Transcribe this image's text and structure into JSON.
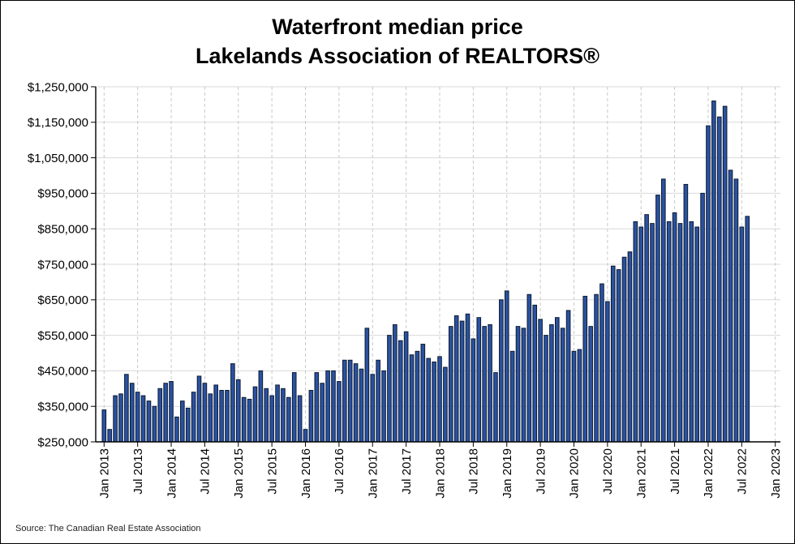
{
  "page": {
    "title_line1": "Waterfront median price",
    "title_line2": "Lakelands Association of REALTORS®",
    "source": "Source: The Canadian Real Estate Association"
  },
  "chart_data": {
    "type": "bar",
    "title": "Waterfront median price — Lakelands Association of REALTORS®",
    "xlabel": "",
    "ylabel": "",
    "legend": "none",
    "grid": {
      "horizontal": "solid",
      "vertical": "dashed"
    },
    "y_axis": {
      "min": 250000,
      "max": 1250000,
      "step": 100000,
      "format": "$#,##0"
    },
    "x_tick_labels": [
      "Jan 2013",
      "Jul 2013",
      "Jan 2014",
      "Jul 2014",
      "Jan 2015",
      "Jul 2015",
      "Jan 2016",
      "Jul 2016",
      "Jan 2017",
      "Jul 2017",
      "Jan 2018",
      "Jul 2018",
      "Jan 2019",
      "Jul 2019",
      "Jan 2020",
      "Jul 2020",
      "Jan 2021",
      "Jul 2021",
      "Jan 2022",
      "Jul 2022",
      "Jan 2023"
    ],
    "x_tick_month_indices": [
      0,
      6,
      12,
      18,
      24,
      30,
      36,
      42,
      48,
      54,
      60,
      66,
      72,
      78,
      84,
      90,
      96,
      102,
      108,
      114,
      120
    ],
    "bar_color": "#2a52a0",
    "bar_border_color": "#0c1a33",
    "axis_color": "#000000",
    "h_grid_color": "#d9d9d9",
    "v_grid_color": "#c9c9c9",
    "categories": [
      "Jan 2013",
      "Feb 2013",
      "Mar 2013",
      "Apr 2013",
      "May 2013",
      "Jun 2013",
      "Jul 2013",
      "Aug 2013",
      "Sep 2013",
      "Oct 2013",
      "Nov 2013",
      "Dec 2013",
      "Jan 2014",
      "Feb 2014",
      "Mar 2014",
      "Apr 2014",
      "May 2014",
      "Jun 2014",
      "Jul 2014",
      "Aug 2014",
      "Sep 2014",
      "Oct 2014",
      "Nov 2014",
      "Dec 2014",
      "Jan 2015",
      "Feb 2015",
      "Mar 2015",
      "Apr 2015",
      "May 2015",
      "Jun 2015",
      "Jul 2015",
      "Aug 2015",
      "Sep 2015",
      "Oct 2015",
      "Nov 2015",
      "Dec 2015",
      "Jan 2016",
      "Feb 2016",
      "Mar 2016",
      "Apr 2016",
      "May 2016",
      "Jun 2016",
      "Jul 2016",
      "Aug 2016",
      "Sep 2016",
      "Oct 2016",
      "Nov 2016",
      "Dec 2016",
      "Jan 2017",
      "Feb 2017",
      "Mar 2017",
      "Apr 2017",
      "May 2017",
      "Jun 2017",
      "Jul 2017",
      "Aug 2017",
      "Sep 2017",
      "Oct 2017",
      "Nov 2017",
      "Dec 2017",
      "Jan 2018",
      "Feb 2018",
      "Mar 2018",
      "Apr 2018",
      "May 2018",
      "Jun 2018",
      "Jul 2018",
      "Aug 2018",
      "Sep 2018",
      "Oct 2018",
      "Nov 2018",
      "Dec 2018",
      "Jan 2019",
      "Feb 2019",
      "Mar 2019",
      "Apr 2019",
      "May 2019",
      "Jun 2019",
      "Jul 2019",
      "Aug 2019",
      "Sep 2019",
      "Oct 2019",
      "Nov 2019",
      "Dec 2019",
      "Jan 2020",
      "Feb 2020",
      "Mar 2020",
      "Apr 2020",
      "May 2020",
      "Jun 2020",
      "Jul 2020",
      "Aug 2020",
      "Sep 2020",
      "Oct 2020",
      "Nov 2020",
      "Dec 2020",
      "Jan 2021",
      "Feb 2021",
      "Mar 2021",
      "Apr 2021",
      "May 2021",
      "Jun 2021",
      "Jul 2021",
      "Aug 2021",
      "Sep 2021",
      "Oct 2021",
      "Nov 2021",
      "Dec 2021",
      "Jan 2022",
      "Feb 2022",
      "Mar 2022",
      "Apr 2022",
      "May 2022",
      "Jun 2022",
      "Jul 2022",
      "Aug 2022"
    ],
    "values": [
      340000,
      285000,
      380000,
      385000,
      440000,
      415000,
      390000,
      380000,
      365000,
      350000,
      400000,
      415000,
      420000,
      320000,
      365000,
      345000,
      390000,
      435000,
      415000,
      385000,
      410000,
      395000,
      395000,
      470000,
      425000,
      375000,
      370000,
      405000,
      450000,
      400000,
      380000,
      410000,
      400000,
      375000,
      445000,
      380000,
      285000,
      395000,
      445000,
      415000,
      450000,
      450000,
      420000,
      480000,
      480000,
      470000,
      455000,
      570000,
      440000,
      480000,
      450000,
      550000,
      580000,
      535000,
      560000,
      495000,
      505000,
      525000,
      485000,
      475000,
      490000,
      460000,
      575000,
      605000,
      590000,
      610000,
      540000,
      600000,
      575000,
      580000,
      445000,
      650000,
      675000,
      505000,
      575000,
      570000,
      665000,
      635000,
      595000,
      550000,
      580000,
      600000,
      570000,
      620000,
      505000,
      510000,
      660000,
      575000,
      665000,
      695000,
      645000,
      745000,
      735000,
      770000,
      785000,
      870000,
      855000,
      890000,
      865000,
      945000,
      990000,
      870000,
      895000,
      865000,
      975000,
      870000,
      855000,
      950000,
      1140000,
      1210000,
      1165000,
      1195000,
      1015000,
      990000,
      855000,
      885000
    ]
  }
}
